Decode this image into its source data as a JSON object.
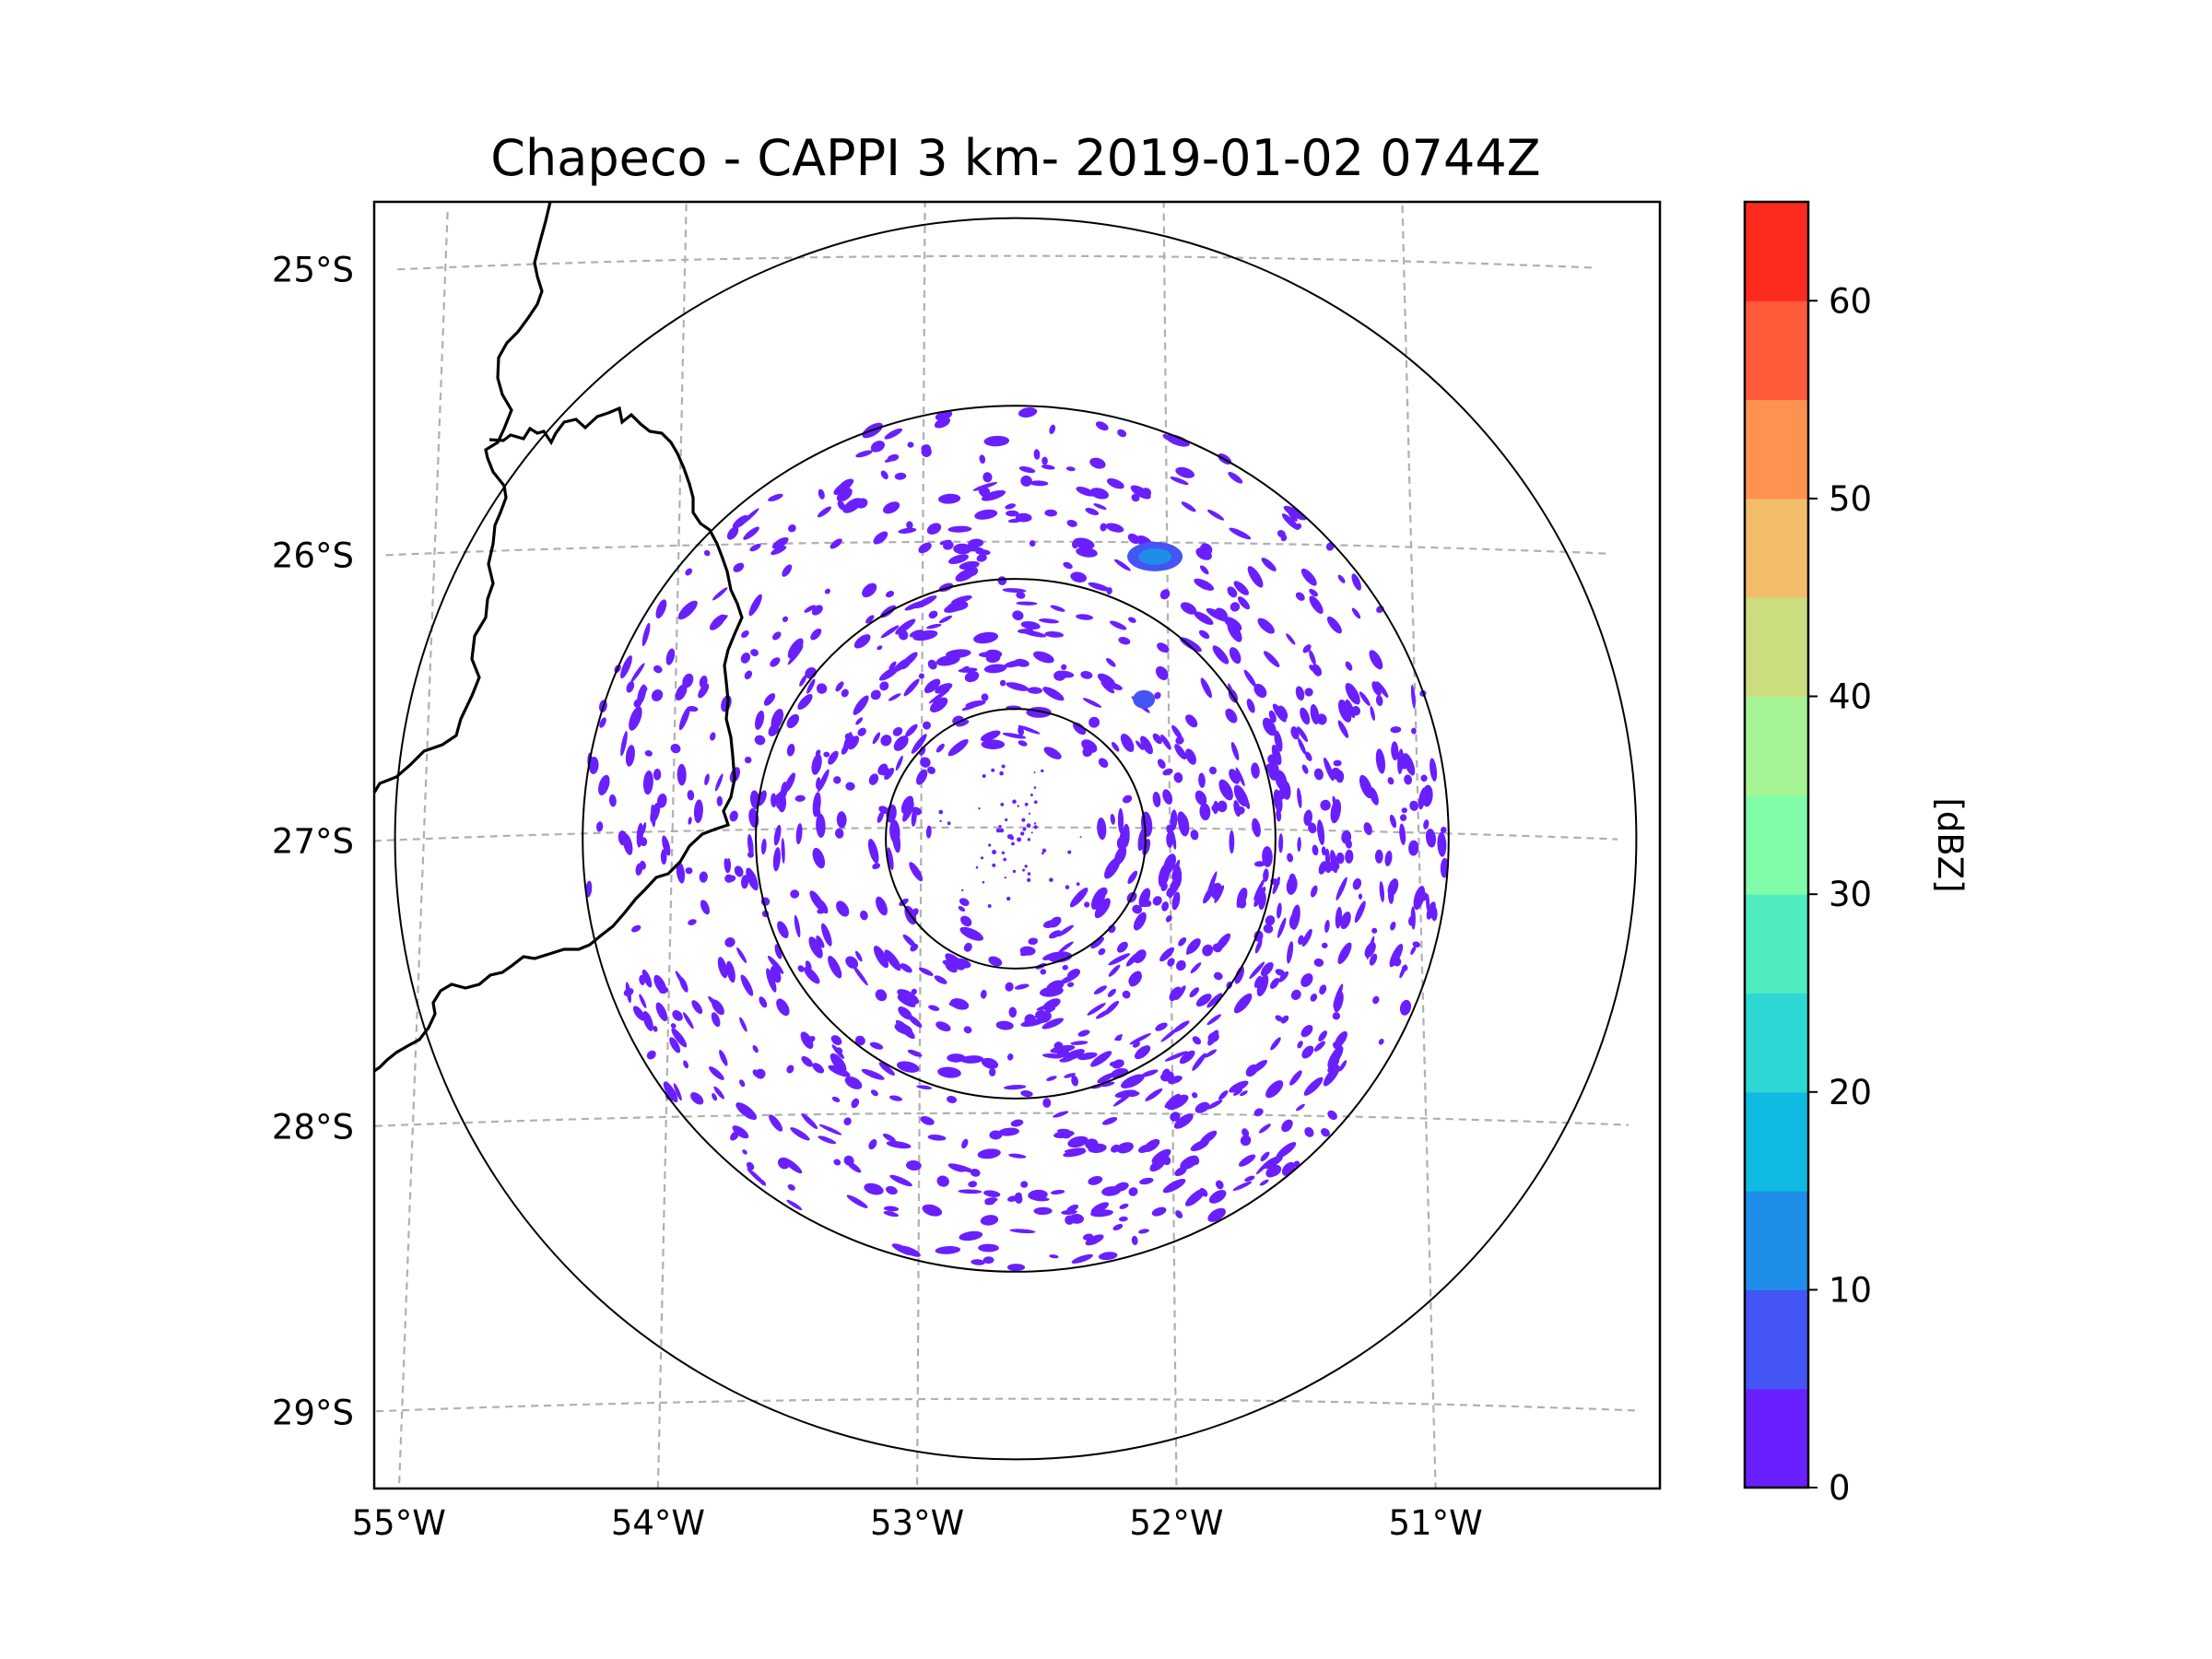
{
  "title": "Chapeco - CAPPI 3 km- 2019-01-02 0744Z",
  "map": {
    "lon_range": [
      -55.2,
      -50.2
    ],
    "lat_range": [
      -29.3,
      -24.8
    ],
    "radar_center": {
      "lon": -52.62,
      "lat": -27.03
    },
    "range_ring_deg": [
      0.45,
      0.9,
      1.5,
      2.15
    ],
    "gridlines": "dashed",
    "x_ticks": [
      {
        "lon": -55,
        "label": "55°W"
      },
      {
        "lon": -54,
        "label": "54°W"
      },
      {
        "lon": -53,
        "label": "53°W"
      },
      {
        "lon": -52,
        "label": "52°W"
      },
      {
        "lon": -51,
        "label": "51°W"
      }
    ],
    "y_ticks": [
      {
        "lat": -25,
        "label": "25°S"
      },
      {
        "lat": -26,
        "label": "26°S"
      },
      {
        "lat": -27,
        "label": "27°S"
      },
      {
        "lat": -28,
        "label": "28°S"
      },
      {
        "lat": -29,
        "label": "29°S"
      }
    ],
    "features": [
      "Argentina–Brazil border",
      "Misiones province outline"
    ],
    "echo_color_dominant": "#6a1fff",
    "notable_echoes": [
      {
        "lon": -52.05,
        "lat": -26.05,
        "level": "10-15 dBZ"
      },
      {
        "lon": -52.1,
        "lat": -26.55,
        "level": "5-10 dBZ"
      }
    ]
  },
  "colorbar": {
    "label": "[dBZ]",
    "min": 0,
    "max": 65,
    "bounds": [
      0,
      5,
      10,
      15,
      20,
      25,
      30,
      35,
      40,
      45,
      50,
      55,
      60,
      65
    ],
    "colors": [
      "#6a1fff",
      "#4455f5",
      "#1f8ee8",
      "#0fbbe3",
      "#2dd8d4",
      "#50ecbf",
      "#80fba8",
      "#a6f494",
      "#cade7f",
      "#f1bd6a",
      "#ff9151",
      "#ff5a3a",
      "#ff2a1e"
    ],
    "ticks": [
      {
        "value": 0,
        "label": "0"
      },
      {
        "value": 10,
        "label": "10"
      },
      {
        "value": 20,
        "label": "20"
      },
      {
        "value": 30,
        "label": "30"
      },
      {
        "value": 40,
        "label": "40"
      },
      {
        "value": 50,
        "label": "50"
      },
      {
        "value": 60,
        "label": "60"
      }
    ]
  }
}
